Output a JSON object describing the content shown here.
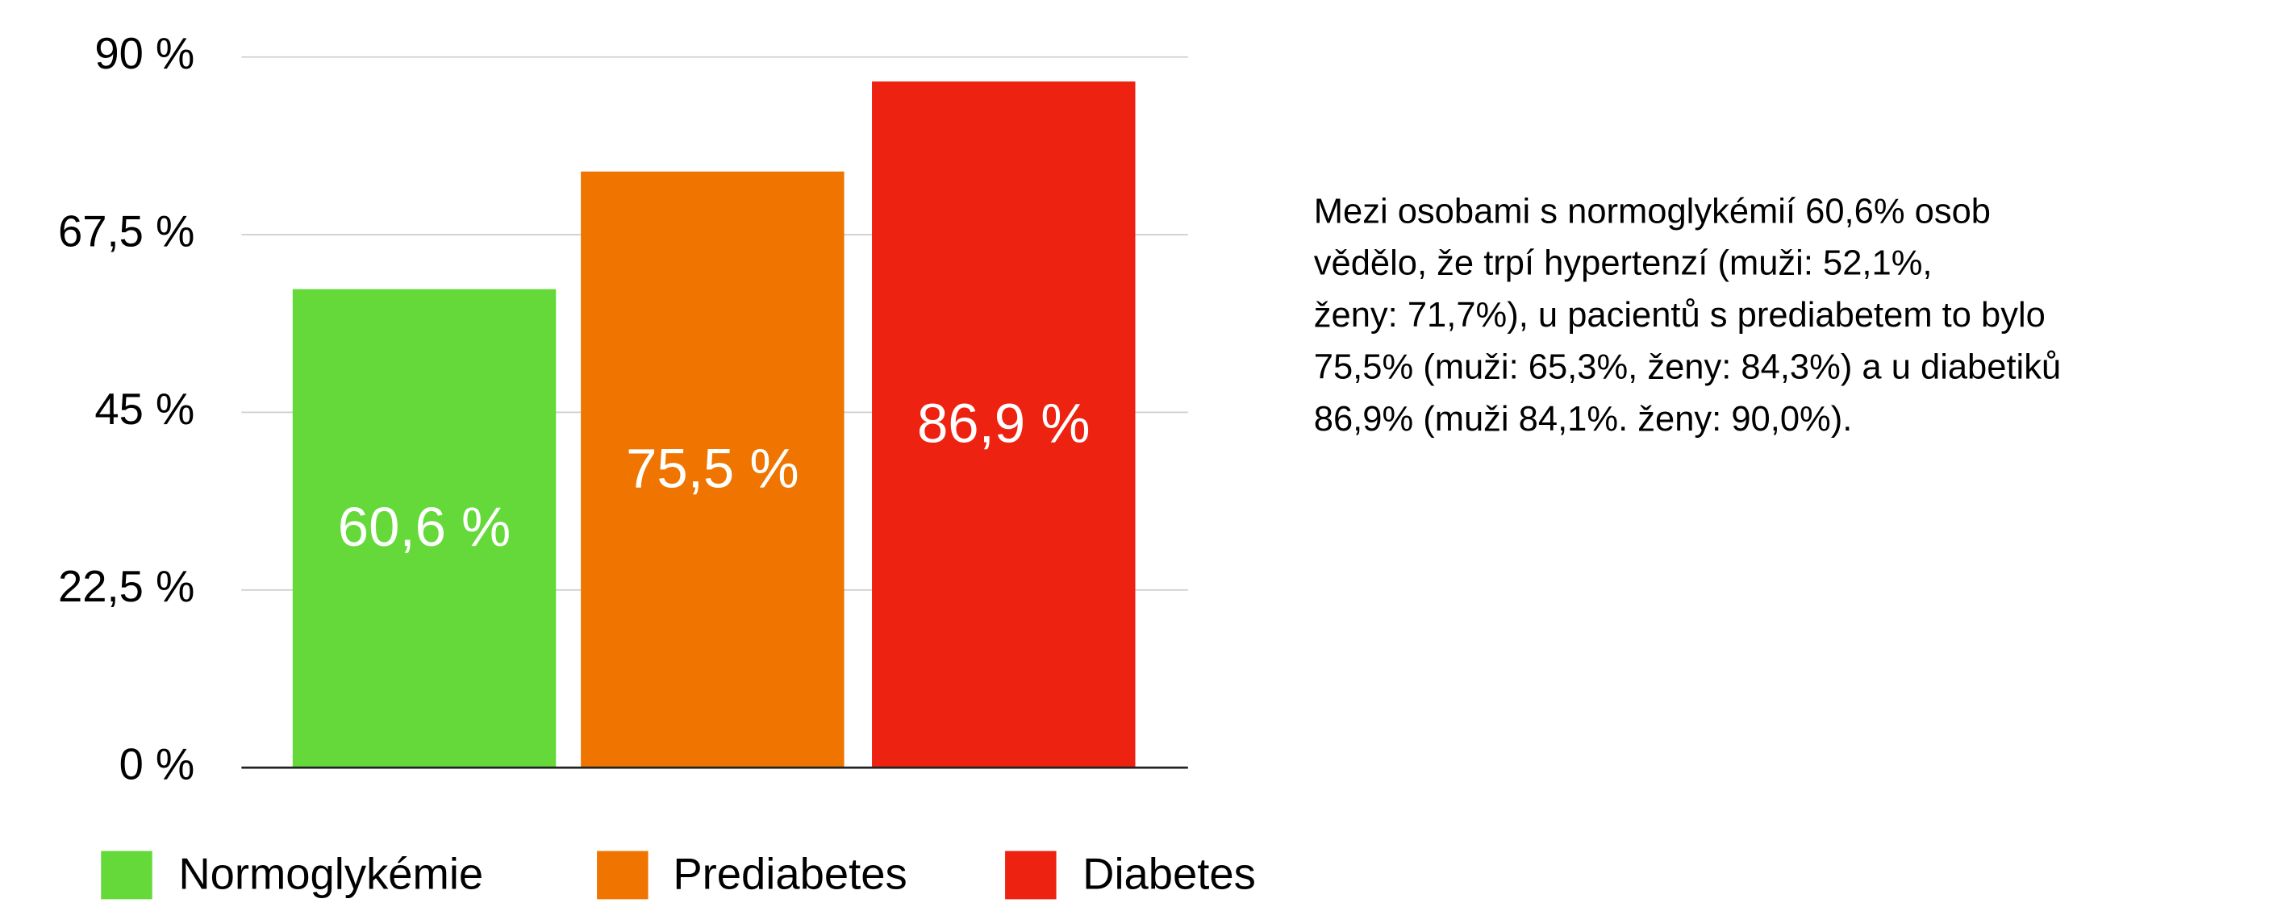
{
  "chart_data": {
    "type": "bar",
    "series": [
      {
        "name": "Normoglykémie",
        "color": "#65d93a",
        "values": [
          60.6
        ],
        "value_labels": [
          "60,6 %"
        ]
      },
      {
        "name": "Prediabetes",
        "color": "#f07400",
        "values": [
          75.5
        ],
        "value_labels": [
          "75,5 %"
        ]
      },
      {
        "name": "Diabetes",
        "color": "#ee2210",
        "values": [
          86.9
        ],
        "value_labels": [
          "86,9 %"
        ]
      }
    ],
    "ylim": [
      0,
      90
    ],
    "yticks": [
      {
        "value": 0,
        "label": "0 %"
      },
      {
        "value": 22.5,
        "label": "22,5 %"
      },
      {
        "value": 45,
        "label": "45 %"
      },
      {
        "value": 67.5,
        "label": "67,5 %"
      },
      {
        "value": 90,
        "label": "90 %"
      }
    ],
    "grid": true,
    "legend": "bottom",
    "annotation_lines": [
      "Mezi osobami s normoglykémií 60,6% osob",
      "vědělo, že trpí hypertenzí (muži: 52,1%,",
      "ženy: 71,7%), u pacientů s prediabetem to bylo",
      "75,5% (muži: 65,3%, ženy: 84,3%) a u diabetiků",
      "86,9% (muži 84,1%. ženy: 90,0%)."
    ]
  }
}
